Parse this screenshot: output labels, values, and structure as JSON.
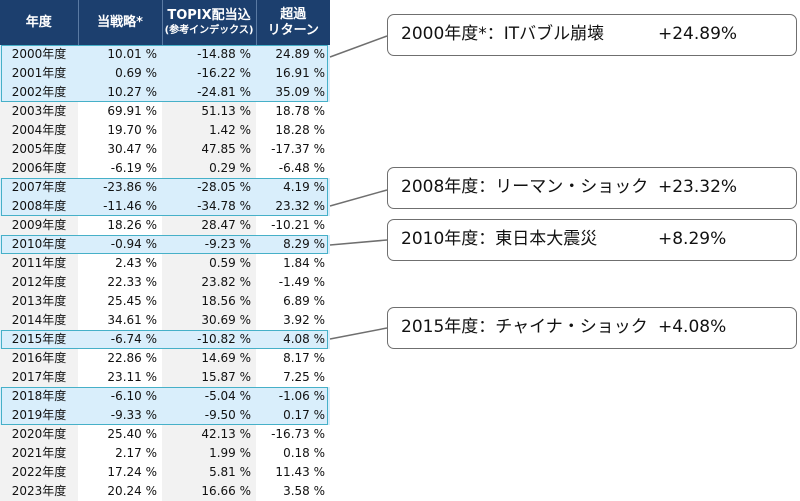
{
  "table": {
    "headers": {
      "year": "年度",
      "strategy": "当戦略*",
      "topix_line1": "TOPIX配当込",
      "topix_line2": "(参考インデックス)",
      "excess_line1": "超過",
      "excess_line2": "リターン"
    },
    "rows": [
      {
        "year": "2000年度",
        "strategy": "10.01 %",
        "topix": "-14.88 %",
        "excess": "24.89 %"
      },
      {
        "year": "2001年度",
        "strategy": "0.69 %",
        "topix": "-16.22 %",
        "excess": "16.91 %"
      },
      {
        "year": "2002年度",
        "strategy": "10.27 %",
        "topix": "-24.81 %",
        "excess": "35.09 %"
      },
      {
        "year": "2003年度",
        "strategy": "69.91 %",
        "topix": "51.13 %",
        "excess": "18.78 %"
      },
      {
        "year": "2004年度",
        "strategy": "19.70 %",
        "topix": "1.42 %",
        "excess": "18.28 %"
      },
      {
        "year": "2005年度",
        "strategy": "30.47 %",
        "topix": "47.85 %",
        "excess": "-17.37 %"
      },
      {
        "year": "2006年度",
        "strategy": "-6.19 %",
        "topix": "0.29 %",
        "excess": "-6.48 %"
      },
      {
        "year": "2007年度",
        "strategy": "-23.86 %",
        "topix": "-28.05 %",
        "excess": "4.19 %"
      },
      {
        "year": "2008年度",
        "strategy": "-11.46 %",
        "topix": "-34.78 %",
        "excess": "23.32 %"
      },
      {
        "year": "2009年度",
        "strategy": "18.26 %",
        "topix": "28.47 %",
        "excess": "-10.21 %"
      },
      {
        "year": "2010年度",
        "strategy": "-0.94 %",
        "topix": "-9.23 %",
        "excess": "8.29 %"
      },
      {
        "year": "2011年度",
        "strategy": "2.43 %",
        "topix": "0.59 %",
        "excess": "1.84 %"
      },
      {
        "year": "2012年度",
        "strategy": "22.33 %",
        "topix": "23.82 %",
        "excess": "-1.49 %"
      },
      {
        "year": "2013年度",
        "strategy": "25.45 %",
        "topix": "18.56 %",
        "excess": "6.89 %"
      },
      {
        "year": "2014年度",
        "strategy": "34.61 %",
        "topix": "30.69 %",
        "excess": "3.92 %"
      },
      {
        "year": "2015年度",
        "strategy": "-6.74 %",
        "topix": "-10.82 %",
        "excess": "4.08 %"
      },
      {
        "year": "2016年度",
        "strategy": "22.86 %",
        "topix": "14.69 %",
        "excess": "8.17 %"
      },
      {
        "year": "2017年度",
        "strategy": "23.11 %",
        "topix": "15.87 %",
        "excess": "7.25 %"
      },
      {
        "year": "2018年度",
        "strategy": "-6.10 %",
        "topix": "-5.04 %",
        "excess": "-1.06 %"
      },
      {
        "year": "2019年度",
        "strategy": "-9.33 %",
        "topix": "-9.50 %",
        "excess": "0.17 %"
      },
      {
        "year": "2020年度",
        "strategy": "25.40 %",
        "topix": "42.13 %",
        "excess": "-16.73 %"
      },
      {
        "year": "2021年度",
        "strategy": "2.17 %",
        "topix": "1.99 %",
        "excess": "0.18 %"
      },
      {
        "year": "2022年度",
        "strategy": "17.24 %",
        "topix": "5.81 %",
        "excess": "11.43 %"
      },
      {
        "year": "2023年度",
        "strategy": "20.24 %",
        "topix": "16.66 %",
        "excess": "3.58 %"
      }
    ]
  },
  "callouts": [
    {
      "label": "2000年度*：ITバブル崩壊",
      "value": "+24.89%"
    },
    {
      "label": "2008年度：リーマン・ショック",
      "value": "+23.32%"
    },
    {
      "label": "2010年度：東日本大震災",
      "value": "+8.29%"
    },
    {
      "label": "2015年度：チャイナ・ショック",
      "value": "+4.08%"
    }
  ],
  "colors": {
    "header_bg": "#1c3f6e",
    "highlight_bg": "#d9eefb",
    "group_border": "#46b0c8",
    "callout_border": "#6f6f6f"
  }
}
